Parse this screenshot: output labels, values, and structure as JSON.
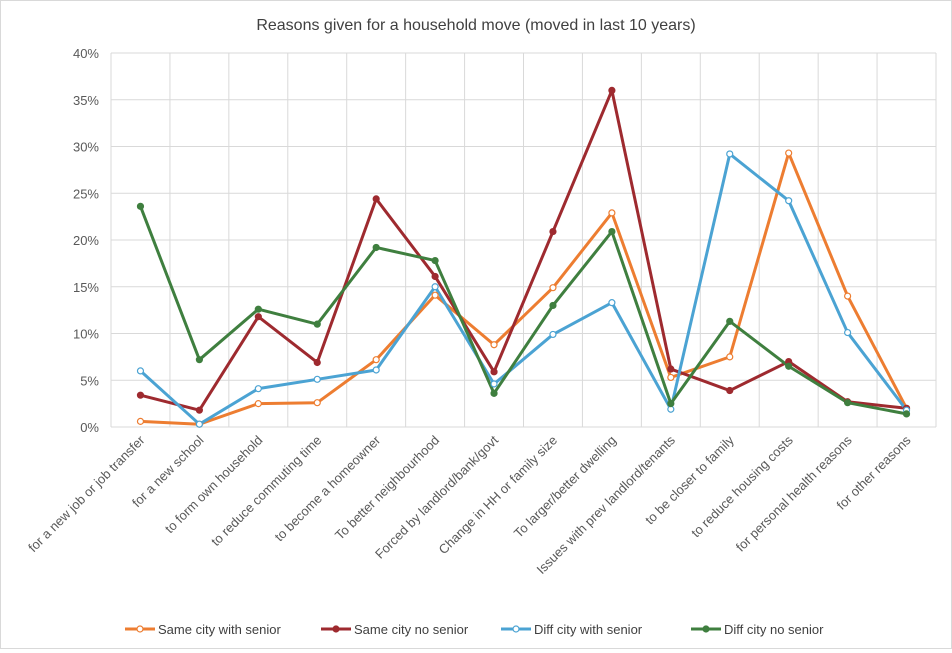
{
  "chart_data": {
    "type": "line",
    "title": "Reasons given for a household move (moved in last 10 years)",
    "xlabel": "",
    "ylabel": "",
    "ylim": [
      0,
      0.4
    ],
    "yticks": [
      "0%",
      "5%",
      "10%",
      "15%",
      "20%",
      "25%",
      "30%",
      "35%",
      "40%"
    ],
    "grid": true,
    "legend_position": "bottom",
    "categories": [
      "for a new job or job transfer",
      "for a new school",
      "to form own household",
      "to reduce commuting time",
      "to become a homeowner",
      "To better neighbourhood",
      "Forced by landlord/bank/govt",
      "Change in HH or family size",
      "To larger/better dwelling",
      "Issues with prev landlord/tenants",
      "to be closer to family",
      "to reduce housing costs",
      "for personal health reasons",
      "for other reasons"
    ],
    "series": [
      {
        "name": "Same city with senior",
        "color": "#ED7D31",
        "marker": "open",
        "values": [
          0.006,
          0.003,
          0.025,
          0.026,
          0.072,
          0.141,
          0.088,
          0.149,
          0.229,
          0.053,
          0.075,
          0.293,
          0.14,
          0.02
        ]
      },
      {
        "name": "Same city no senior",
        "color": "#9E2A2F",
        "marker": "filled",
        "values": [
          0.034,
          0.018,
          0.118,
          0.069,
          0.244,
          0.161,
          0.059,
          0.209,
          0.36,
          0.062,
          0.039,
          0.07,
          0.027,
          0.02
        ]
      },
      {
        "name": "Diff city with senior",
        "color": "#4BA3D3",
        "marker": "open",
        "values": [
          0.06,
          0.003,
          0.041,
          0.051,
          0.061,
          0.15,
          0.046,
          0.099,
          0.133,
          0.019,
          0.292,
          0.242,
          0.101,
          0.018
        ]
      },
      {
        "name": "Diff city no senior",
        "color": "#3F7F3F",
        "marker": "filled",
        "values": [
          0.236,
          0.072,
          0.126,
          0.11,
          0.192,
          0.178,
          0.036,
          0.13,
          0.209,
          0.025,
          0.113,
          0.065,
          0.026,
          0.014
        ]
      }
    ]
  }
}
